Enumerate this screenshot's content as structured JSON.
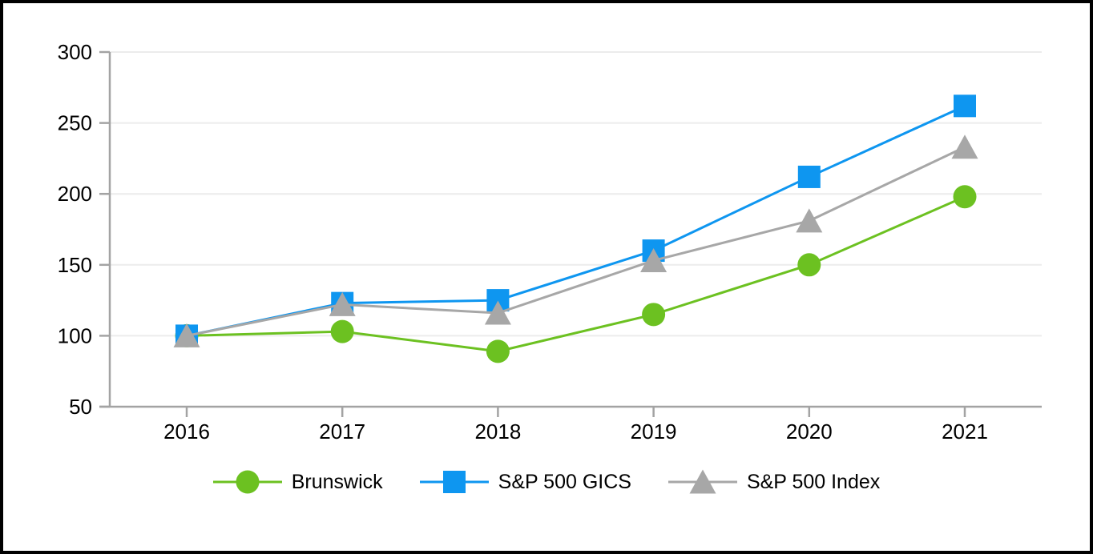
{
  "chart_data": {
    "type": "line",
    "title": "",
    "xlabel": "",
    "ylabel": "",
    "x_categories": [
      "2016",
      "2017",
      "2018",
      "2019",
      "2020",
      "2021"
    ],
    "series": [
      {
        "name": "Brunswick",
        "marker": "circle",
        "color": "#6CC121",
        "values": [
          100,
          103,
          89,
          115,
          150,
          198
        ]
      },
      {
        "name": "S&P 500 GICS",
        "marker": "square",
        "color": "#0E96F0",
        "values": [
          100,
          123,
          125,
          160,
          212,
          262
        ]
      },
      {
        "name": "S&P 500 Index",
        "marker": "triangle",
        "color": "#A7A7A7",
        "values": [
          100,
          122,
          116,
          153,
          181,
          233
        ]
      }
    ],
    "ylim": [
      50,
      300
    ],
    "yticks": [
      50,
      100,
      150,
      200,
      250,
      300
    ],
    "grid": true,
    "legend_position": "bottom",
    "axis_color": "#A3A3A3",
    "gridline_color": "#ECECEC",
    "text_color": "#000000",
    "background_color": "#FFFFFF",
    "border_color": "#000000"
  }
}
